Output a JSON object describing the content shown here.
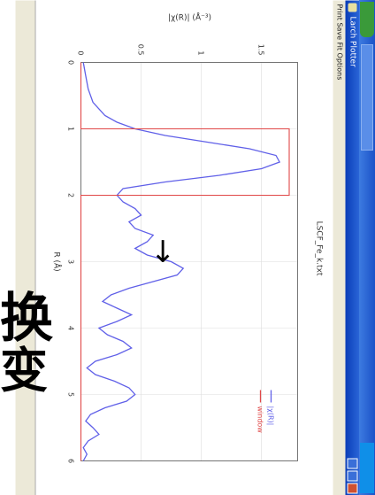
{
  "overlay": {
    "char_1": "变",
    "char_2": "换",
    "arrow": "↓"
  },
  "window": {
    "title": "Larch Plotter",
    "menu_text": "Print  Save  Fit  Options",
    "status_text": ""
  },
  "chart_data": {
    "type": "line",
    "title": "LSCF_Fe_k.txt",
    "xlabel": "R (Å)",
    "ylabel": "|χ(R)| (Å⁻³)",
    "xlim": [
      0,
      6
    ],
    "ylim": [
      0,
      1.8
    ],
    "x_ticks": [
      "0",
      "1",
      "2",
      "3",
      "4",
      "5",
      "6"
    ],
    "y_ticks": [
      "0",
      "0.5",
      "1",
      "1.5"
    ],
    "grid": true,
    "legend_position": "top-right",
    "series": [
      {
        "name": "|χ(R)|",
        "color": "#6060e8",
        "x": [
          0,
          0.2,
          0.4,
          0.6,
          0.8,
          0.9,
          1.0,
          1.1,
          1.2,
          1.3,
          1.4,
          1.5,
          1.6,
          1.7,
          1.8,
          1.9,
          2.0,
          2.1,
          2.2,
          2.3,
          2.4,
          2.5,
          2.6,
          2.7,
          2.8,
          2.9,
          3.0,
          3.1,
          3.2,
          3.3,
          3.4,
          3.5,
          3.6,
          3.7,
          3.8,
          3.9,
          4.0,
          4.1,
          4.2,
          4.3,
          4.4,
          4.5,
          4.6,
          4.7,
          4.8,
          4.9,
          5.0,
          5.1,
          5.2,
          5.3,
          5.4,
          5.5,
          5.6,
          5.7,
          5.8,
          5.9,
          6.0
        ],
        "y": [
          0.02,
          0.04,
          0.06,
          0.1,
          0.2,
          0.3,
          0.45,
          0.7,
          1.05,
          1.4,
          1.62,
          1.65,
          1.5,
          1.15,
          0.7,
          0.35,
          0.3,
          0.35,
          0.45,
          0.5,
          0.4,
          0.45,
          0.6,
          0.55,
          0.45,
          0.55,
          0.75,
          0.85,
          0.8,
          0.6,
          0.4,
          0.25,
          0.18,
          0.3,
          0.42,
          0.3,
          0.15,
          0.22,
          0.35,
          0.42,
          0.3,
          0.12,
          0.05,
          0.12,
          0.28,
          0.4,
          0.45,
          0.38,
          0.2,
          0.08,
          0.04,
          0.1,
          0.15,
          0.06,
          0.02,
          0.05,
          0.02
        ]
      },
      {
        "name": "window",
        "color": "#e04848",
        "x": [
          0,
          1.0,
          1.0,
          2.0,
          2.0,
          6.0
        ],
        "y": [
          0,
          0,
          1.73,
          1.73,
          0,
          0
        ]
      }
    ]
  }
}
